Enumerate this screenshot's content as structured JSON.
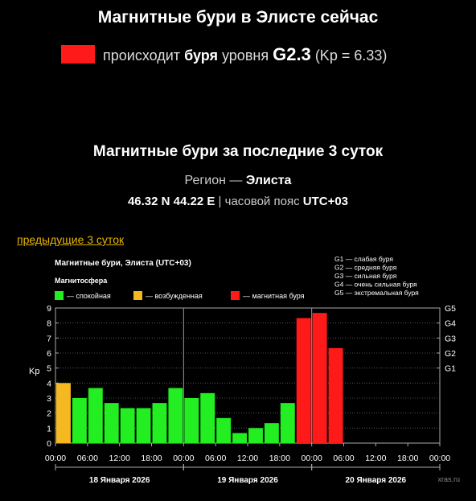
{
  "header": {
    "title": "Магнитные бури в Элисте сейчас",
    "status_prefix": "происходит",
    "status_bold": "буря",
    "status_mid": "уровня",
    "status_level": "G2.3",
    "status_kp": "(Kp = 6.33)",
    "status_color": "#ff1a1a"
  },
  "history": {
    "title": "Магнитные бури за последние 3 суток",
    "region_label": "Регион —",
    "region_name": "Элиста",
    "coords": "46.32 N 44.22 E",
    "sep": "|",
    "tz_label": "часовой пояс",
    "tz_value": "UTC+03",
    "prev_link": "предыдущие 3 суток"
  },
  "chart_data": {
    "type": "bar",
    "title": "Магнитные бури, Элиста (UTC+03)",
    "legend_title": "Магнитосфера",
    "legend": [
      {
        "label": "— спокойная",
        "color": "#22ee22"
      },
      {
        "label": "— возбужденная",
        "color": "#f5b820"
      },
      {
        "label": "— магнитная буря",
        "color": "#ff1a1a"
      }
    ],
    "g_legend": [
      "G1 — слабая буря",
      "G2 — средняя буря",
      "G3 — сильная буря",
      "G4 — очень сильная буря",
      "G5 — экстремальная буря"
    ],
    "ylabel": "Kp",
    "ylim": [
      0,
      9
    ],
    "yticks": [
      "0",
      "1",
      "2",
      "3",
      "4",
      "5",
      "6",
      "7",
      "8",
      "9"
    ],
    "right_ticks": [
      {
        "label": "G1",
        "value": 5
      },
      {
        "label": "G2",
        "value": 6
      },
      {
        "label": "G3",
        "value": 7
      },
      {
        "label": "G4",
        "value": 8
      },
      {
        "label": "G5",
        "value": 9
      }
    ],
    "xticks": [
      "00:00",
      "06:00",
      "12:00",
      "18:00",
      "00:00",
      "06:00",
      "12:00",
      "18:00",
      "00:00",
      "06:00",
      "12:00",
      "18:00",
      "00:00"
    ],
    "days": [
      "18 Января 2026",
      "19 Января 2026",
      "20 Января 2026"
    ],
    "slots": 24,
    "values": [
      4.0,
      3.0,
      3.67,
      2.67,
      2.33,
      2.33,
      2.67,
      3.67,
      3.0,
      3.33,
      1.67,
      0.67,
      1.0,
      1.33,
      2.67,
      8.33,
      8.67,
      6.33
    ],
    "colors": [
      "#f5b820",
      "#22ee22",
      "#22ee22",
      "#22ee22",
      "#22ee22",
      "#22ee22",
      "#22ee22",
      "#22ee22",
      "#22ee22",
      "#22ee22",
      "#22ee22",
      "#22ee22",
      "#22ee22",
      "#22ee22",
      "#22ee22",
      "#ff1a1a",
      "#ff1a1a",
      "#ff1a1a"
    ],
    "grid": true,
    "watermark": "xras.ru"
  }
}
